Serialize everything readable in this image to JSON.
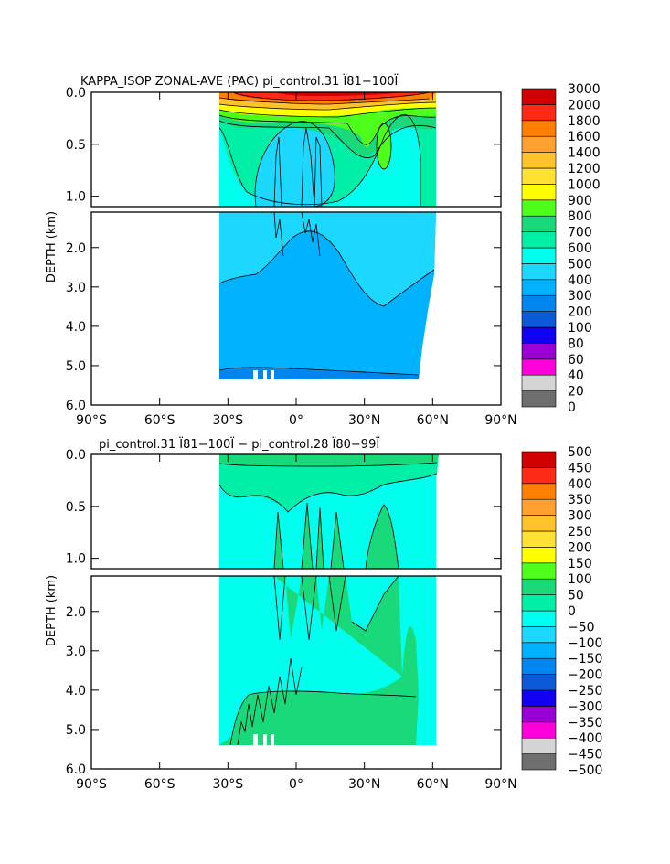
{
  "chart_data": [
    {
      "type": "heatmap",
      "title": "KAPPA_ISOP ZONAL-AVE (PAC) pi_control.31 Ï81−100Ï",
      "ylabel": "DEPTH (km)",
      "xticks": [
        "90°S",
        "60°S",
        "30°S",
        "0°",
        "30°N",
        "60°N",
        "90°N"
      ],
      "xlim": [
        -90,
        90
      ],
      "upper_yticks": [
        "0.0",
        "0.5",
        "1.0"
      ],
      "lower_yticks": [
        "2.0",
        "3.0",
        "4.0",
        "5.0",
        "6.0"
      ],
      "ylim_upper": [
        0,
        1.1
      ],
      "ylim_lower": [
        1.1,
        6.0
      ],
      "data_extent_lat": [
        -35,
        62
      ],
      "colorbar_levels": [
        "0",
        "20",
        "40",
        "60",
        "80",
        "100",
        "200",
        "300",
        "400",
        "500",
        "600",
        "700",
        "800",
        "900",
        "1000",
        "1200",
        "1400",
        "1600",
        "1800",
        "2000",
        "3000"
      ],
      "colorbar_colors": [
        "#6e6e6e",
        "#d4d4d4",
        "#ff00dd",
        "#9a00d6",
        "#1100f2",
        "#0d5ad9",
        "#0086ee",
        "#00b2ff",
        "#1cd8ff",
        "#00ffee",
        "#00efa7",
        "#1ad97a",
        "#4dff1a",
        "#ffff00",
        "#ffe033",
        "#ffc22a",
        "#ffa030",
        "#ff8000",
        "#ff2a15",
        "#d10000"
      ],
      "dominant_bands": {
        "surface_0_0.1km": "1400-3000",
        "thermocline_0.1_0.3km": "800-1400",
        "0.3_1.1km": "400-600",
        "1.1_3.0km": "300-400",
        "3.0_5.3km": "200-300",
        "bottom": "100-200"
      }
    },
    {
      "type": "heatmap",
      "title": "pi_control.31 Ï81−100Ï − pi_control.28 Ï80−99Ï",
      "ylabel": "DEPTH (km)",
      "xticks": [
        "90°S",
        "60°S",
        "30°S",
        "0°",
        "30°N",
        "60°N",
        "90°N"
      ],
      "xlim": [
        -90,
        90
      ],
      "upper_yticks": [
        "0.0",
        "0.5",
        "1.0"
      ],
      "lower_yticks": [
        "2.0",
        "3.0",
        "4.0",
        "5.0",
        "6.0"
      ],
      "ylim_upper": [
        0,
        1.1
      ],
      "ylim_lower": [
        1.1,
        6.0
      ],
      "data_extent_lat": [
        -35,
        62
      ],
      "colorbar_levels": [
        "−500",
        "−450",
        "−400",
        "−350",
        "−300",
        "−250",
        "−200",
        "−150",
        "−100",
        "−50",
        "0",
        "50",
        "100",
        "150",
        "200",
        "250",
        "300",
        "350",
        "400",
        "450",
        "500"
      ],
      "colorbar_colors": [
        "#6e6e6e",
        "#d4d4d4",
        "#ff00dd",
        "#9a00d6",
        "#1100f2",
        "#0d5ad9",
        "#0086ee",
        "#00b2ff",
        "#1cd8ff",
        "#00ffee",
        "#00efa7",
        "#1ad97a",
        "#4dff1a",
        "#ffff00",
        "#ffe033",
        "#ffc22a",
        "#ffa030",
        "#ff8000",
        "#ff2a15",
        "#d10000"
      ],
      "dominant_bands": {
        "general": "-50-0",
        "positive_regions": "0-50",
        "surface": "50-150"
      }
    }
  ]
}
